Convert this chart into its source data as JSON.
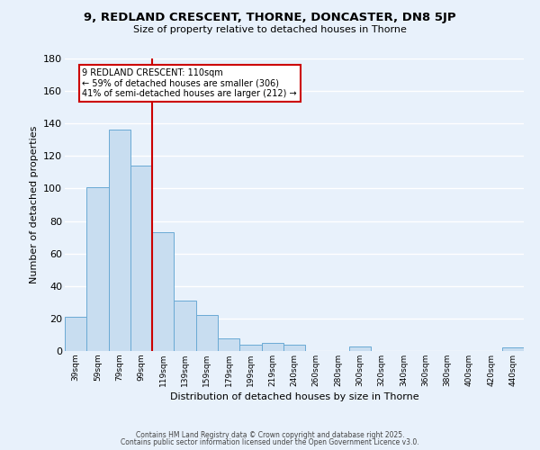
{
  "title": "9, REDLAND CRESCENT, THORNE, DONCASTER, DN8 5JP",
  "subtitle": "Size of property relative to detached houses in Thorne",
  "xlabel": "Distribution of detached houses by size in Thorne",
  "ylabel": "Number of detached properties",
  "bar_color": "#c8ddf0",
  "bar_edge_color": "#6aaad4",
  "background_color": "#e8f1fb",
  "grid_color": "#ffffff",
  "categories": [
    "39sqm",
    "59sqm",
    "79sqm",
    "99sqm",
    "119sqm",
    "139sqm",
    "159sqm",
    "179sqm",
    "199sqm",
    "219sqm",
    "240sqm",
    "260sqm",
    "280sqm",
    "300sqm",
    "320sqm",
    "340sqm",
    "360sqm",
    "380sqm",
    "400sqm",
    "420sqm",
    "440sqm"
  ],
  "values": [
    21,
    101,
    136,
    114,
    73,
    31,
    22,
    8,
    4,
    5,
    4,
    0,
    0,
    3,
    0,
    0,
    0,
    0,
    0,
    0,
    2
  ],
  "vline_color": "#cc0000",
  "vline_index": 3.5,
  "annotation_text": "9 REDLAND CRESCENT: 110sqm\n← 59% of detached houses are smaller (306)\n41% of semi-detached houses are larger (212) →",
  "annotation_box_color": "#ffffff",
  "annotation_border_color": "#cc0000",
  "ylim": [
    0,
    180
  ],
  "yticks": [
    0,
    20,
    40,
    60,
    80,
    100,
    120,
    140,
    160,
    180
  ],
  "footer1": "Contains HM Land Registry data © Crown copyright and database right 2025.",
  "footer2": "Contains public sector information licensed under the Open Government Licence v3.0."
}
